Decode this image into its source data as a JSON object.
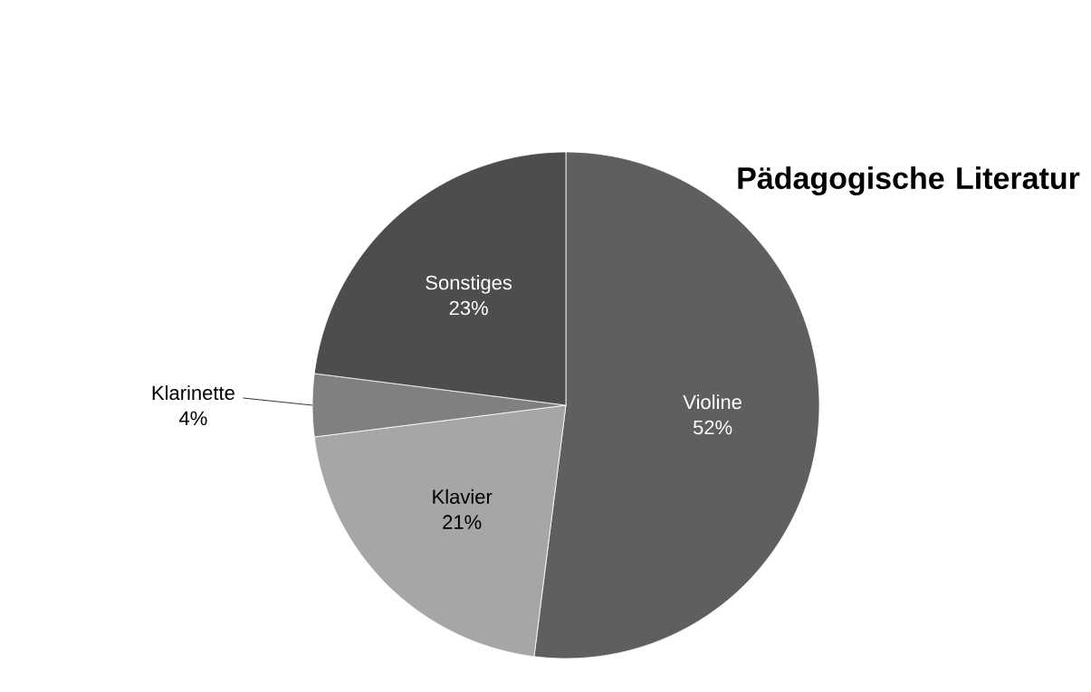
{
  "chart_data": {
    "type": "pie",
    "title": "Pädagogische Literatur",
    "categories": [
      "Violine",
      "Klavier",
      "Klarinette",
      "Sonstiges"
    ],
    "values": [
      52,
      21,
      4,
      23
    ],
    "value_labels": [
      "52%",
      "21%",
      "4%",
      "23%"
    ],
    "colors": [
      "#5f5f5f",
      "#a6a6a6",
      "#808080",
      "#4d4d4d"
    ]
  }
}
